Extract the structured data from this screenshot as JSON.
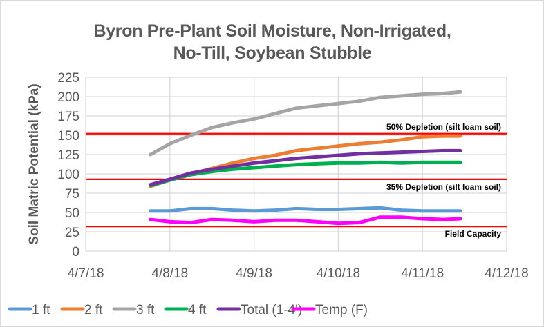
{
  "chart_data": {
    "type": "line",
    "title_lines": [
      "Byron Pre-Plant Soil Moisture, Non-Irrigated,",
      "No-Till, Soybean Stubble"
    ],
    "ylabel": "Soil Matric Potential (kPa)",
    "xlabel": "",
    "ylim": [
      0,
      225
    ],
    "yticks": [
      0,
      25,
      50,
      75,
      100,
      125,
      150,
      175,
      200,
      225
    ],
    "xlim": [
      0,
      5
    ],
    "xticks": [
      {
        "value": 0,
        "label": "4/7/18"
      },
      {
        "value": 1,
        "label": "4/8/18"
      },
      {
        "value": 2,
        "label": "4/9/18"
      },
      {
        "value": 3,
        "label": "4/10/18"
      },
      {
        "value": 4,
        "label": "4/11/18"
      },
      {
        "value": 5,
        "label": "4/12/18"
      }
    ],
    "x_units": "days since 4/7/18",
    "grid": true,
    "legend_position": "bottom",
    "x": [
      0.77,
      1.0,
      1.25,
      1.5,
      1.75,
      2.0,
      2.25,
      2.5,
      2.75,
      3.0,
      3.25,
      3.5,
      3.75,
      4.0,
      4.25,
      4.45
    ],
    "series": [
      {
        "name": "1 ft",
        "color": "#5b9bd5",
        "values": [
          52,
          52,
          55,
          55,
          53,
          52,
          53,
          55,
          54,
          54,
          55,
          56,
          53,
          52,
          52,
          52
        ]
      },
      {
        "name": "2 ft",
        "color": "#ed7d31",
        "values": [
          84,
          92,
          100,
          107,
          114,
          120,
          124,
          130,
          133,
          136,
          139,
          141,
          144,
          148,
          149,
          149
        ]
      },
      {
        "name": "3 ft",
        "color": "#a5a5a5",
        "values": [
          125,
          139,
          150,
          160,
          166,
          171,
          178,
          185,
          188,
          191,
          194,
          199,
          201,
          203,
          204,
          206
        ]
      },
      {
        "name": "4 ft",
        "color": "#00b050",
        "values": [
          85,
          92,
          99,
          103,
          106,
          108,
          110,
          112,
          113,
          114,
          114,
          115,
          114,
          115,
          115,
          115
        ]
      },
      {
        "name": "Total (1-4')",
        "color": "#7030a0",
        "values": [
          86,
          93,
          101,
          106,
          110,
          114,
          117,
          120,
          122,
          124,
          126,
          127,
          128,
          129,
          130,
          130
        ]
      },
      {
        "name": "Temp (F)",
        "color": "#ff00ff",
        "values": [
          41,
          38,
          37,
          41,
          40,
          38,
          40,
          40,
          38,
          36,
          37,
          44,
          44,
          42,
          41,
          42
        ]
      }
    ],
    "reference_lines": [
      {
        "value": 152,
        "label": "50% Depletion (silt loam soil)",
        "color": "#ff0000"
      },
      {
        "value": 93,
        "label": "35% Depletion (silt loam soil)",
        "color": "#ff0000"
      },
      {
        "value": 32,
        "label": "Field Capacity",
        "color": "#ff0000"
      }
    ]
  }
}
